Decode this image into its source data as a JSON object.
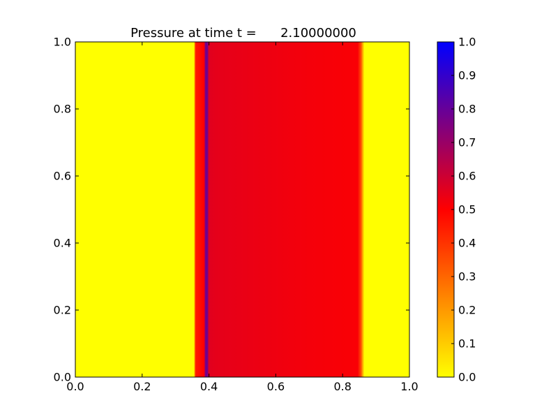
{
  "chart_data": {
    "type": "heatmap",
    "title": "Pressure at time t =      2.10000000",
    "xlabel": "",
    "ylabel": "",
    "xlim": [
      0.0,
      1.0
    ],
    "ylim": [
      0.0,
      1.0
    ],
    "grid": false,
    "x_ticks": [
      "0.0",
      "0.2",
      "0.4",
      "0.6",
      "0.8",
      "1.0"
    ],
    "y_ticks": [
      "0.0",
      "0.2",
      "0.4",
      "0.6",
      "0.8",
      "1.0"
    ],
    "field": {
      "description_axis": "x",
      "profile": [
        {
          "x": 0.0,
          "value": 0.0
        },
        {
          "x": 0.355,
          "value": 0.0
        },
        {
          "x": 0.36,
          "value": 0.45
        },
        {
          "x": 0.385,
          "value": 0.5
        },
        {
          "x": 0.39,
          "value": 0.78
        },
        {
          "x": 0.395,
          "value": 0.78
        },
        {
          "x": 0.4,
          "value": 0.56
        },
        {
          "x": 0.42,
          "value": 0.55
        },
        {
          "x": 0.7,
          "value": 0.52
        },
        {
          "x": 0.845,
          "value": 0.51
        },
        {
          "x": 0.855,
          "value": 0.35
        },
        {
          "x": 0.865,
          "value": 0.0
        },
        {
          "x": 1.0,
          "value": 0.0
        }
      ]
    },
    "colorbar": {
      "range": [
        0.0,
        1.0
      ],
      "ticks": [
        "0.0",
        "0.1",
        "0.2",
        "0.3",
        "0.4",
        "0.5",
        "0.6",
        "0.7",
        "0.8",
        "0.9",
        "1.0"
      ],
      "colormap": [
        {
          "value": 0.0,
          "color": "#ffff00"
        },
        {
          "value": 0.5,
          "color": "#ff0000"
        },
        {
          "value": 1.0,
          "color": "#0000ff"
        }
      ]
    }
  }
}
